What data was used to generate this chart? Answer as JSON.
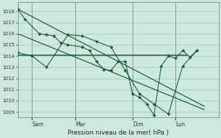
{
  "background_color": "#cce8e0",
  "grid_color": "#aaccbb",
  "line_color": "#1a5c2a",
  "title": "Pression niveau de la mer( hPa )",
  "ylim": [
    1008.5,
    1018.8
  ],
  "yticks": [
    1009,
    1010,
    1011,
    1012,
    1013,
    1014,
    1015,
    1016,
    1017,
    1018
  ],
  "xlim": [
    0,
    14
  ],
  "x_tick_pos": [
    1,
    4,
    8,
    11
  ],
  "x_labels": [
    "Sam",
    "Mar",
    "Dim",
    "Lun"
  ],
  "vline_pos": [
    1,
    4,
    8,
    11
  ],
  "series1_x": [
    0,
    0.5,
    1.5,
    2.0,
    2.5,
    3.0,
    3.5,
    4.5,
    5.0,
    5.5,
    6.0,
    6.5,
    7.0,
    7.5,
    8.0,
    8.5,
    9.0,
    9.5,
    10.0,
    10.5,
    11.0,
    11.5,
    12.0,
    12.5
  ],
  "series1_y": [
    1018.2,
    1017.3,
    1016.0,
    1015.9,
    1015.8,
    1015.2,
    1015.0,
    1014.8,
    1014.5,
    1013.5,
    1012.8,
    1012.7,
    1013.5,
    1013.5,
    1010.6,
    1010.3,
    1009.7,
    1008.7,
    1013.1,
    1014.0,
    1013.8,
    1014.5,
    1013.9,
    1014.5
  ],
  "series2_x": [
    0,
    1.0,
    2.0,
    3.5,
    4.5,
    5.5,
    6.5,
    7.5,
    8.5,
    9.5,
    10.5,
    11.5,
    12.5
  ],
  "series2_y": [
    1014.3,
    1014.0,
    1013.0,
    1015.9,
    1015.8,
    1015.3,
    1014.8,
    1012.7,
    1010.6,
    1009.7,
    1008.8,
    1013.1,
    1014.5
  ],
  "hline_y": 1014.1,
  "hline_x_start": 0,
  "hline_x_end": 11.8,
  "trend1_x": [
    0,
    13
  ],
  "trend1_y": [
    1018.2,
    1009.5
  ],
  "trend2_x": [
    0,
    13
  ],
  "trend2_y": [
    1016.0,
    1009.2
  ]
}
